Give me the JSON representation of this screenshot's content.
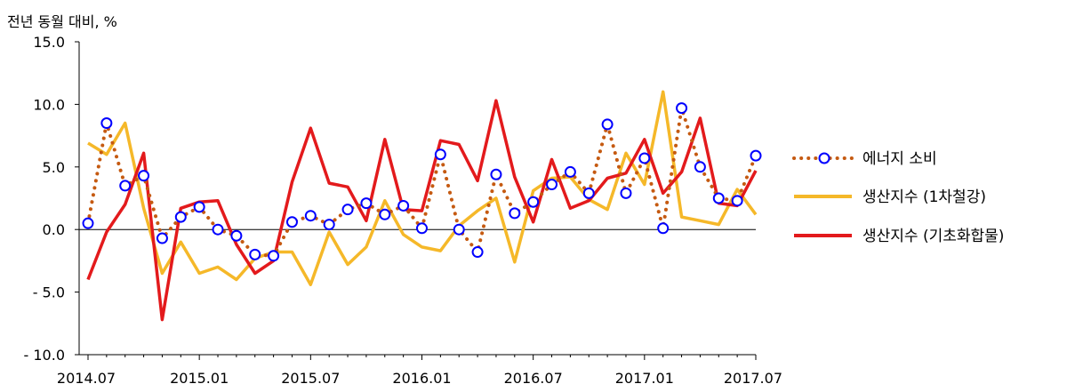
{
  "chart_data": {
    "type": "line",
    "unit_label": "전년 동월 대비, %",
    "ylim": [
      -10,
      15
    ],
    "yticks": [
      "15.0",
      "10.0",
      "5.0",
      "0.0",
      "- 5.0",
      "- 10.0"
    ],
    "ytick_values": [
      15,
      10,
      5,
      0,
      -5,
      -10
    ],
    "x": [
      "2014.07",
      "2014.08",
      "2014.09",
      "2014.10",
      "2014.11",
      "2014.12",
      "2015.01",
      "2015.02",
      "2015.03",
      "2015.04",
      "2015.05",
      "2015.06",
      "2015.07",
      "2015.08",
      "2015.09",
      "2015.10",
      "2015.11",
      "2015.12",
      "2016.01",
      "2016.02",
      "2016.03",
      "2016.04",
      "2016.05",
      "2016.06",
      "2016.07",
      "2016.08",
      "2016.09",
      "2016.10",
      "2016.11",
      "2016.12",
      "2017.01",
      "2017.02",
      "2017.03",
      "2017.04",
      "2017.05",
      "2017.06",
      "2017.07"
    ],
    "xtick_labels": [
      "2014.07",
      "2015.01",
      "2015.07",
      "2016.01",
      "2016.07",
      "2017.01",
      "2017.07"
    ],
    "xtick_indices": [
      0,
      6,
      12,
      18,
      24,
      30,
      36
    ],
    "grid": false,
    "legend_position": "right",
    "series": [
      {
        "name": "에너지 소비",
        "style": "dotted-circles",
        "color": "#C55A11",
        "marker_color": "#0000FF",
        "values": [
          0.5,
          8.5,
          3.5,
          4.3,
          -0.7,
          1.0,
          1.8,
          0.0,
          -0.5,
          -2.0,
          -2.1,
          0.6,
          1.1,
          0.4,
          1.6,
          2.1,
          1.2,
          1.9,
          0.1,
          6.0,
          0.0,
          -1.8,
          4.4,
          1.3,
          2.2,
          3.6,
          4.6,
          2.9,
          8.4,
          2.9,
          5.7,
          0.1,
          9.7,
          5.0,
          2.5,
          2.3,
          5.9
        ]
      },
      {
        "name": "생산지수 (1차철강)",
        "style": "solid",
        "color": "#F5B829",
        "values": [
          6.9,
          6.0,
          8.5,
          1.7,
          -3.5,
          -1.0,
          -3.5,
          -3.0,
          -4.0,
          -2.3,
          -1.8,
          -1.8,
          -4.4,
          -0.2,
          -2.8,
          -1.4,
          2.3,
          -0.4,
          -1.4,
          -1.7,
          0.3,
          1.5,
          2.5,
          -2.6,
          3.1,
          4.1,
          4.2,
          2.4,
          1.6,
          6.1,
          3.6,
          11.0,
          1.0,
          0.7,
          0.4,
          3.2,
          1.2
        ]
      },
      {
        "name": "생산지수 (기초화합물)",
        "style": "solid",
        "color": "#E31A1C",
        "values": [
          -4.0,
          -0.2,
          2.0,
          6.1,
          -7.2,
          1.7,
          2.2,
          2.3,
          -1.2,
          -3.5,
          -2.5,
          3.8,
          8.1,
          3.7,
          3.4,
          0.7,
          7.2,
          1.6,
          1.5,
          7.1,
          6.8,
          3.9,
          10.3,
          4.2,
          0.6,
          5.6,
          1.7,
          2.3,
          4.1,
          4.5,
          7.2,
          2.9,
          4.6,
          8.9,
          2.1,
          1.9,
          4.7
        ]
      }
    ]
  }
}
